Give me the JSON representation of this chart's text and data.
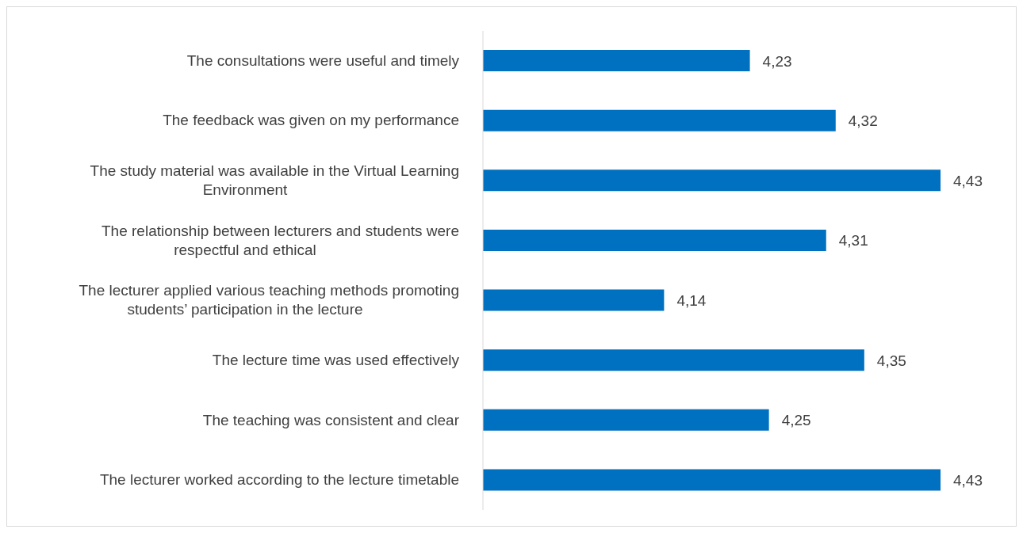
{
  "chart_data": {
    "type": "bar",
    "orientation": "horizontal",
    "categories": [
      "The consultations were useful and timely",
      "The feedback was given on my performance",
      "The study material was available in the Virtual Learning Environment",
      "The relationship between lecturers and students were respectful and ethical",
      "The lecturer applied various teaching methods promoting students’ participation in the lecture",
      "The lecture time was used effectively",
      "The teaching was consistent and clear",
      "The lecturer worked according to the lecture timetable"
    ],
    "values": [
      4.23,
      4.32,
      4.43,
      4.31,
      4.14,
      4.35,
      4.25,
      4.43
    ],
    "value_labels": [
      "4,23",
      "4,32",
      "4,43",
      "4,31",
      "4,14",
      "4,35",
      "4,25",
      "4,43"
    ],
    "color": "#0070c0",
    "xlim": [
      3.95,
      4.43
    ],
    "tick_labels": "y",
    "grid": false,
    "legend": false
  }
}
